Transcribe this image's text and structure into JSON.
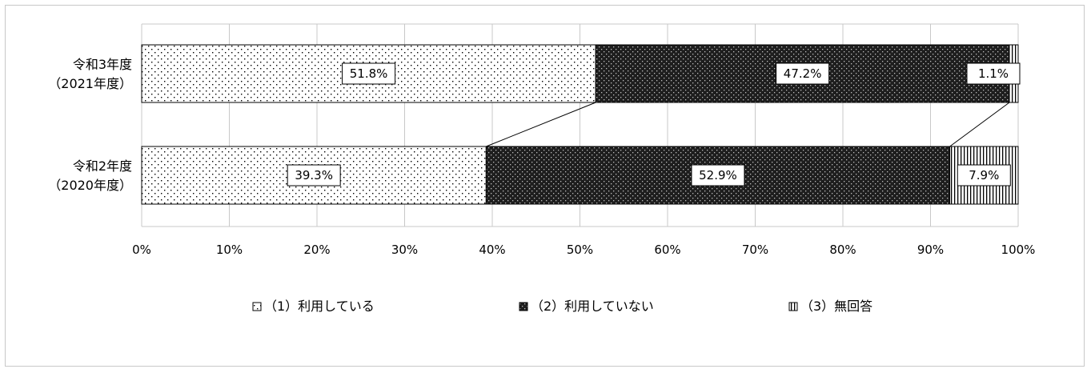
{
  "chart_data": {
    "type": "bar",
    "orientation": "horizontal",
    "stacked": true,
    "percent": true,
    "categories": [
      [
        "令和3年度",
        "（2021年度）"
      ],
      [
        "令和2年度",
        "（2020年度）"
      ]
    ],
    "series": [
      {
        "name": "（1）利用している",
        "values": [
          51.8,
          39.3
        ],
        "labels": [
          "51.8%",
          "39.3%"
        ],
        "pattern": "sparse-dots"
      },
      {
        "name": "（2）利用していない",
        "values": [
          47.2,
          52.9
        ],
        "labels": [
          "47.2%",
          "52.9%"
        ],
        "pattern": "dense-dots-dark"
      },
      {
        "name": "（3）無回答",
        "values": [
          1.1,
          7.9
        ],
        "labels": [
          "1.1%",
          "7.9%"
        ],
        "pattern": "vertical-lines"
      }
    ],
    "xlim": [
      0,
      100
    ],
    "xticks": [
      "0%",
      "10%",
      "20%",
      "30%",
      "40%",
      "50%",
      "60%",
      "70%",
      "80%",
      "90%",
      "100%"
    ],
    "grid": "vertical",
    "series_connector_lines": true,
    "legend": "bottom"
  }
}
